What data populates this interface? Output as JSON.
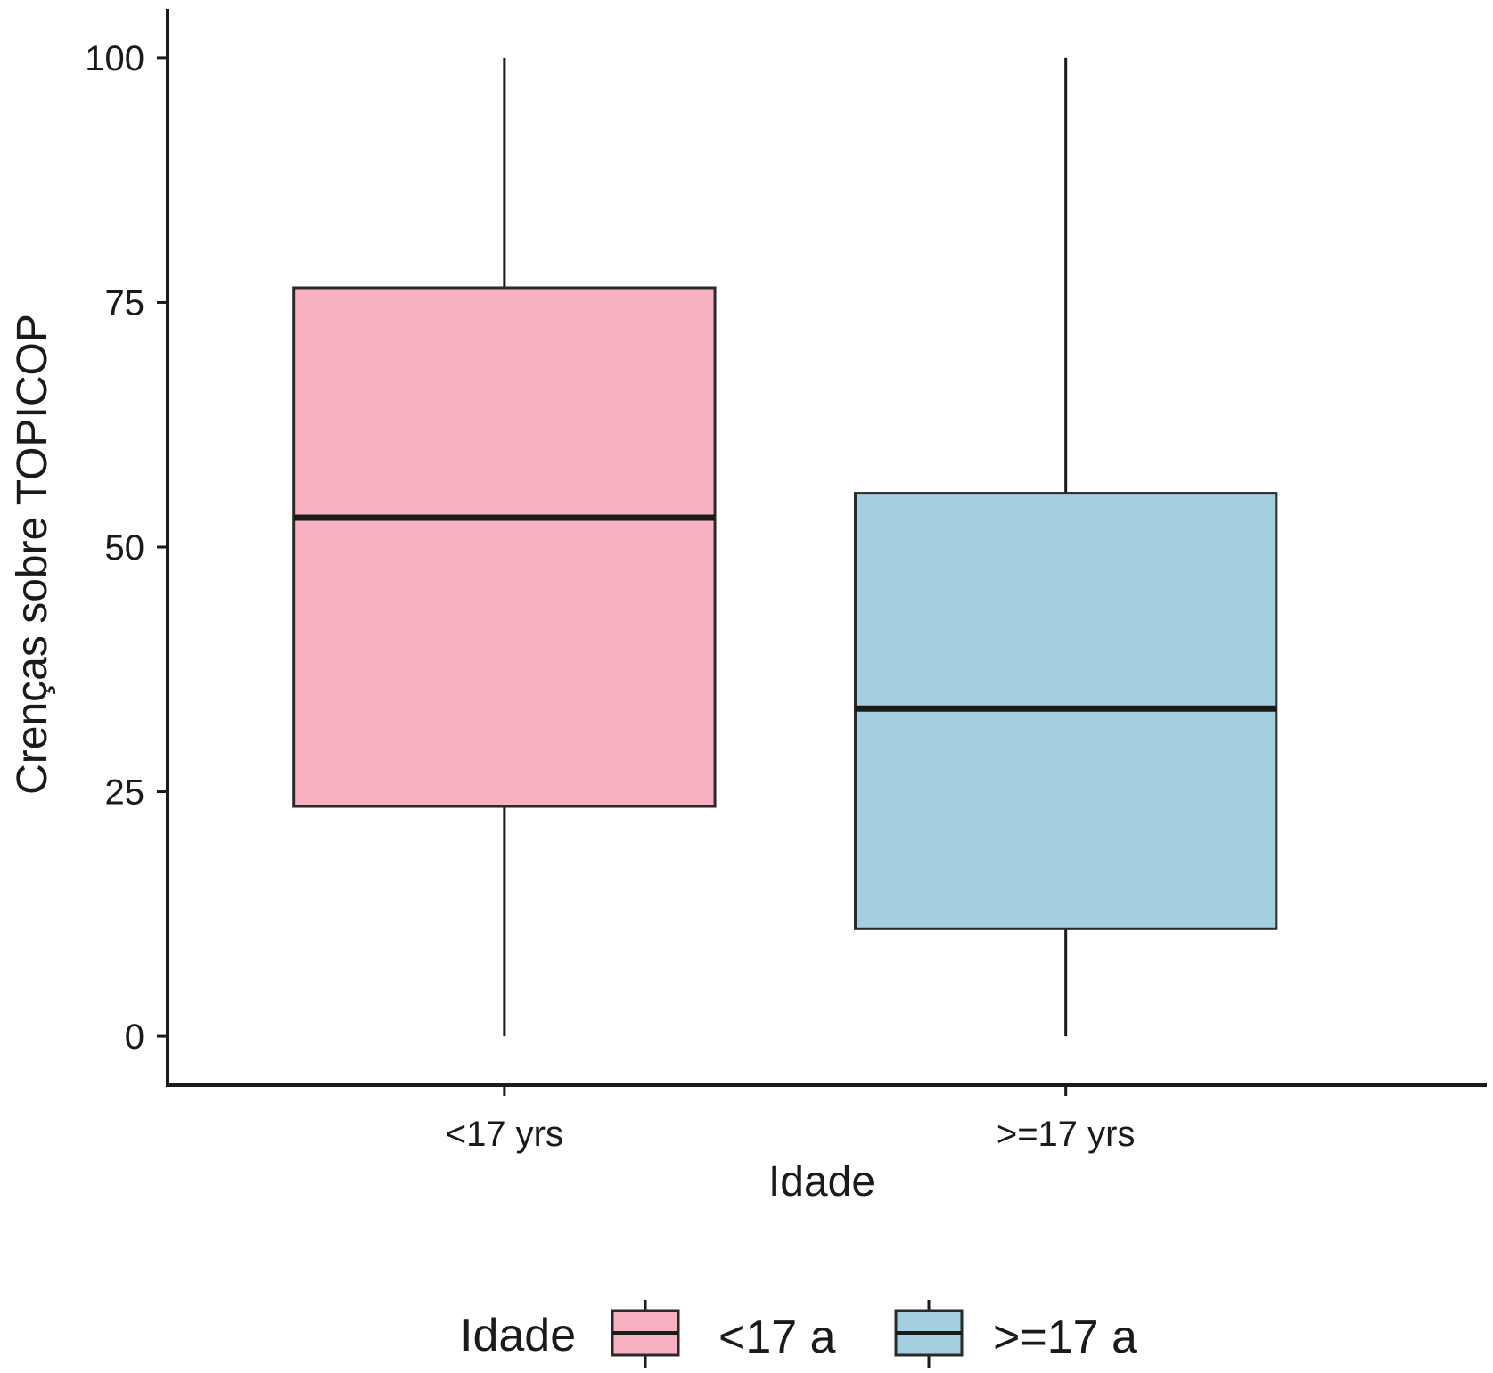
{
  "chart_data": {
    "type": "boxplot",
    "xlabel": "Idade",
    "ylabel": "Crenças sobre TOPICOP",
    "ylim": [
      -5,
      105
    ],
    "yticks": [
      0,
      25,
      50,
      75,
      100
    ],
    "grid": false,
    "categories": [
      "<17 yrs",
      ">=17 yrs"
    ],
    "boxes": [
      {
        "category": "<17 yrs",
        "min": 0,
        "q1": 23.5,
        "median": 53,
        "q3": 76.5,
        "max": 100,
        "color": "#f8b1c1"
      },
      {
        "category": ">=17 yrs",
        "min": 0,
        "q1": 11,
        "median": 33.5,
        "q3": 55.5,
        "max": 100,
        "color": "#a4cfe0"
      }
    ],
    "legend": {
      "title": "Idade",
      "position": "bottom",
      "entries": [
        {
          "label": "<17 a",
          "color": "#f8b1c1"
        },
        {
          "label": ">=17 a",
          "color": "#a4cfe0"
        }
      ]
    }
  }
}
